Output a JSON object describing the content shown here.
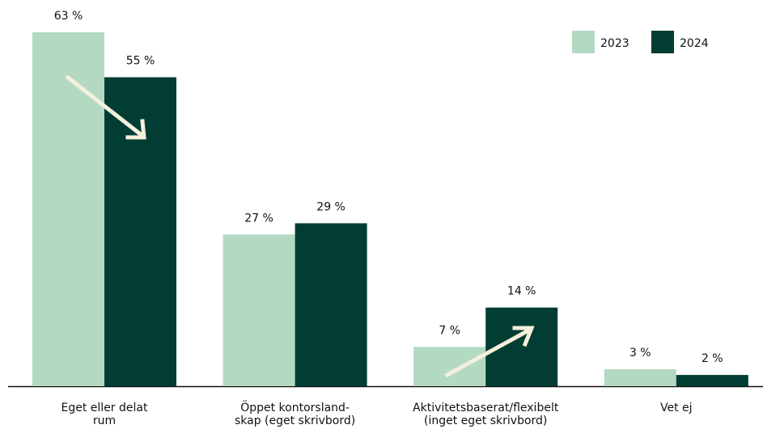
{
  "chart_data": {
    "type": "bar",
    "categories": [
      [
        "Eget eller delat",
        "rum"
      ],
      [
        "Öppet kontorsland-",
        "skap (eget skrivbord)"
      ],
      [
        "Aktivitetsbaserat/flexibelt",
        "(inget eget skrivbord)"
      ],
      [
        "Vet ej"
      ]
    ],
    "series": [
      {
        "name": "2023",
        "color": "#b4d9c2",
        "values": [
          63,
          27,
          7,
          3
        ],
        "value_labels": [
          "63 %",
          "27 %",
          "7 %",
          "3 %"
        ]
      },
      {
        "name": "2024",
        "color": "#023d33",
        "values": [
          55,
          29,
          14,
          2
        ],
        "value_labels": [
          "55 %",
          "29 %",
          "14 %",
          "2 %"
        ]
      }
    ],
    "legend": "top-right"
  }
}
